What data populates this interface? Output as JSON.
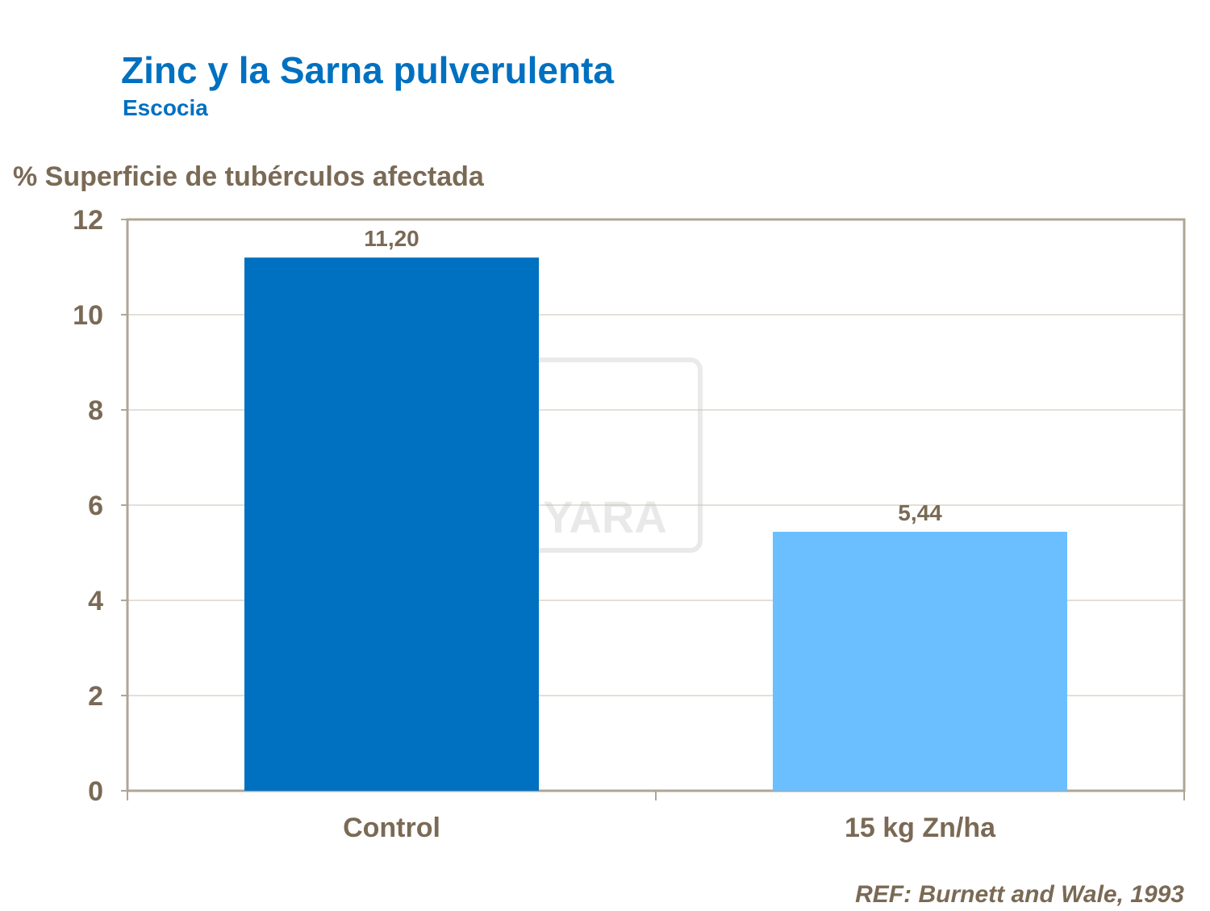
{
  "title": "Zinc y la Sarna pulverulenta",
  "subtitle": "Escocia",
  "reference": "REF: Burnett and Wale, 1993",
  "chart_data": {
    "type": "bar",
    "title": "Zinc y la Sarna pulverulenta",
    "subtitle": "Escocia",
    "ylabel": "% Superficie de tubérculos afectada",
    "xlabel": "",
    "categories": [
      "Control",
      "15 kg Zn/ha"
    ],
    "values": [
      11.2,
      5.44
    ],
    "data_labels": [
      "11,20",
      "5,44"
    ],
    "colors": [
      "#0070c0",
      "#6bbfff"
    ],
    "ylim": [
      0,
      12
    ],
    "yticks": [
      0,
      2,
      4,
      6,
      8,
      10,
      12
    ],
    "grid": true,
    "watermark": "YARA"
  }
}
